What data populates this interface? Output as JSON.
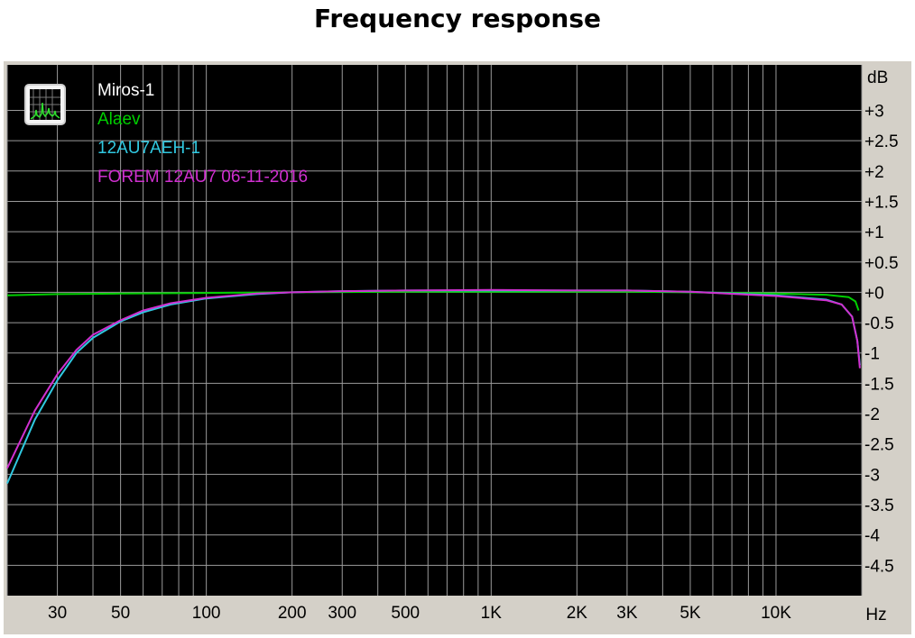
{
  "title": "Frequency response",
  "chart_data": {
    "type": "line",
    "title": "Frequency response",
    "xlabel": "Hz",
    "ylabel": "dB",
    "x_scale": "log",
    "xlim": [
      20,
      20000
    ],
    "ylim": [
      -5,
      3.75
    ],
    "grid": true,
    "background": "#000000",
    "grid_color": "#9a9a9a",
    "x_ticks": [
      {
        "value": 30,
        "label": "30"
      },
      {
        "value": 50,
        "label": "50"
      },
      {
        "value": 100,
        "label": "100"
      },
      {
        "value": 200,
        "label": "200"
      },
      {
        "value": 300,
        "label": "300"
      },
      {
        "value": 500,
        "label": "500"
      },
      {
        "value": 1000,
        "label": "1K"
      },
      {
        "value": 2000,
        "label": "2K"
      },
      {
        "value": 3000,
        "label": "3K"
      },
      {
        "value": 5000,
        "label": "5K"
      },
      {
        "value": 10000,
        "label": "10K"
      }
    ],
    "y_ticks": [
      {
        "value": 3,
        "label": "+3"
      },
      {
        "value": 2.5,
        "label": "+2.5"
      },
      {
        "value": 2,
        "label": "+2"
      },
      {
        "value": 1.5,
        "label": "+1.5"
      },
      {
        "value": 1,
        "label": "+1"
      },
      {
        "value": 0.5,
        "label": "+0.5"
      },
      {
        "value": 0,
        "label": "+0"
      },
      {
        "value": -0.5,
        "label": "-0.5"
      },
      {
        "value": -1,
        "label": "-1"
      },
      {
        "value": -1.5,
        "label": "-1.5"
      },
      {
        "value": -2,
        "label": "-2"
      },
      {
        "value": -2.5,
        "label": "-2.5"
      },
      {
        "value": -3,
        "label": "-3"
      },
      {
        "value": -3.5,
        "label": "-3.5"
      },
      {
        "value": -4,
        "label": "-4"
      },
      {
        "value": -4.5,
        "label": "-4.5"
      }
    ],
    "legend_position": "top-left",
    "series": [
      {
        "name": "Miros-1",
        "color": "#ffffff",
        "points": []
      },
      {
        "name": "Alaev",
        "color": "#00d000",
        "points": [
          [
            20,
            -0.05
          ],
          [
            30,
            -0.03
          ],
          [
            50,
            -0.02
          ],
          [
            100,
            -0.01
          ],
          [
            200,
            0
          ],
          [
            500,
            0.01
          ],
          [
            1000,
            0.01
          ],
          [
            3000,
            0.01
          ],
          [
            5000,
            0
          ],
          [
            10000,
            -0.02
          ],
          [
            15000,
            -0.04
          ],
          [
            18000,
            -0.08
          ],
          [
            19000,
            -0.15
          ],
          [
            19500,
            -0.3
          ]
        ]
      },
      {
        "name": "12AU7AEH-1",
        "color": "#30c8e0",
        "points": [
          [
            20,
            -3.15
          ],
          [
            25,
            -2.1
          ],
          [
            30,
            -1.45
          ],
          [
            35,
            -1.0
          ],
          [
            40,
            -0.75
          ],
          [
            50,
            -0.48
          ],
          [
            60,
            -0.33
          ],
          [
            75,
            -0.2
          ],
          [
            100,
            -0.1
          ],
          [
            150,
            -0.03
          ],
          [
            200,
            0
          ],
          [
            300,
            0.02
          ],
          [
            500,
            0.03
          ],
          [
            1000,
            0.03
          ],
          [
            2000,
            0.03
          ],
          [
            3000,
            0.03
          ],
          [
            5000,
            0.01
          ],
          [
            10000,
            -0.05
          ],
          [
            15000,
            -0.12
          ],
          [
            17000,
            -0.2
          ],
          [
            18500,
            -0.4
          ],
          [
            19300,
            -0.8
          ],
          [
            19700,
            -1.2
          ]
        ]
      },
      {
        "name": "FOREM 12AU7 06-11-2016",
        "color": "#d030d0",
        "points": [
          [
            20,
            -2.9
          ],
          [
            25,
            -1.95
          ],
          [
            30,
            -1.35
          ],
          [
            35,
            -0.95
          ],
          [
            40,
            -0.7
          ],
          [
            50,
            -0.46
          ],
          [
            60,
            -0.3
          ],
          [
            75,
            -0.18
          ],
          [
            100,
            -0.09
          ],
          [
            150,
            -0.02
          ],
          [
            200,
            0
          ],
          [
            300,
            0.02
          ],
          [
            500,
            0.03
          ],
          [
            1000,
            0.04
          ],
          [
            2000,
            0.03
          ],
          [
            3000,
            0.03
          ],
          [
            5000,
            0.01
          ],
          [
            10000,
            -0.06
          ],
          [
            15000,
            -0.13
          ],
          [
            17000,
            -0.2
          ],
          [
            18500,
            -0.4
          ],
          [
            19300,
            -0.8
          ],
          [
            19700,
            -1.25
          ]
        ]
      }
    ],
    "icon": "spectrum-analyzer-icon"
  }
}
